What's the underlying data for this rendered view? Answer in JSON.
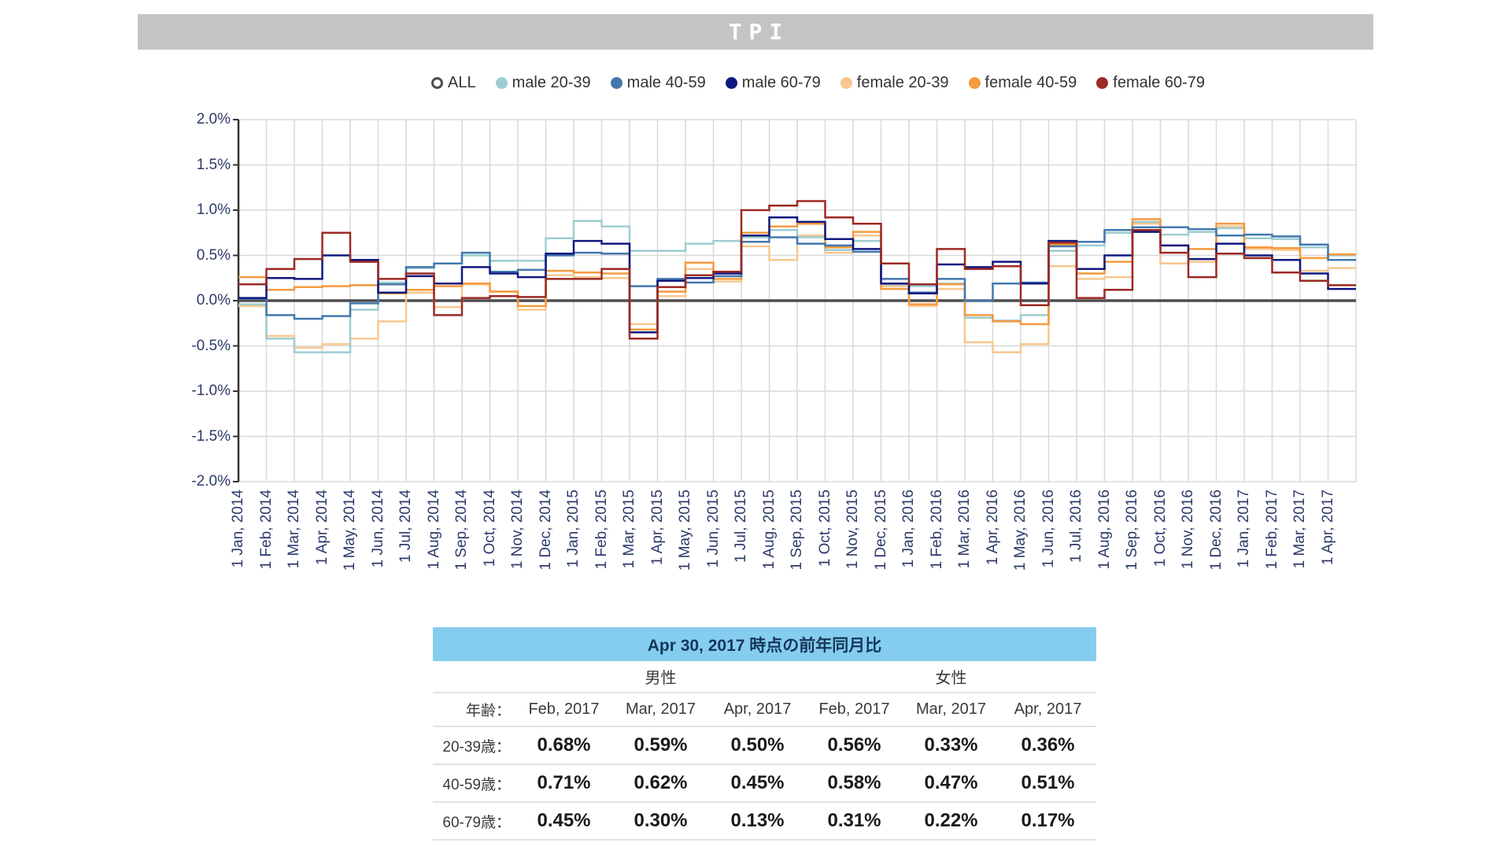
{
  "title": "TPI",
  "colors": {
    "all": "#4d4d4d",
    "male_20_39": "#9dcdd0",
    "male_40_59": "#4378ad",
    "male_60_79": "#10187f",
    "female_20_39": "#f8c790",
    "female_40_59": "#f49a3e",
    "female_60_79": "#9b2a23",
    "grid": "#d9d9d9",
    "axis": "#333333",
    "axis_label": "#2d3a6b",
    "title_bar_bg": "#c4c4c4",
    "table_header_bg": "#85cdee"
  },
  "chart_data": {
    "type": "line",
    "step": true,
    "title": "TPI",
    "xlabel": "",
    "ylabel": "",
    "ylim": [
      -2.0,
      2.0
    ],
    "y_tick_step": 0.5,
    "y_tick_labels": [
      "2.0%",
      "1.5%",
      "1.0%",
      "0.5%",
      "0.0%",
      "-0.5%",
      "-1.0%",
      "-1.5%",
      "-2.0%"
    ],
    "x_label_rotation": -90,
    "grid": true,
    "legend_position": "top",
    "unit": "%",
    "categories": [
      "1 Jan, 2014",
      "1 Feb, 2014",
      "1 Mar, 2014",
      "1 Apr, 2014",
      "1 May, 2014",
      "1 Jun, 2014",
      "1 Jul, 2014",
      "1 Aug, 2014",
      "1 Sep, 2014",
      "1 Oct, 2014",
      "1 Nov, 2014",
      "1 Dec, 2014",
      "1 Jan, 2015",
      "1 Feb, 2015",
      "1 Mar, 2015",
      "1 Apr, 2015",
      "1 May, 2015",
      "1 Jun, 2015",
      "1 Jul, 2015",
      "1 Aug, 2015",
      "1 Sep, 2015",
      "1 Oct, 2015",
      "1 Nov, 2015",
      "1 Dec, 2015",
      "1 Jan, 2016",
      "1 Feb, 2016",
      "1 Mar, 2016",
      "1 Apr, 2016",
      "1 May, 2016",
      "1 Jun, 2016",
      "1 Jul, 2016",
      "1 Aug, 2016",
      "1 Sep, 2016",
      "1 Oct, 2016",
      "1 Nov, 2016",
      "1 Dec, 2016",
      "1 Jan, 2017",
      "1 Feb, 2017",
      "1 Mar, 2017",
      "1 Apr, 2017"
    ],
    "series": [
      {
        "key": "all",
        "name": "ALL",
        "open_marker": true,
        "values": [
          0,
          0,
          0,
          0,
          0,
          0,
          0,
          0,
          0,
          0,
          0,
          0,
          0,
          0,
          0,
          0,
          0,
          0,
          0,
          0,
          0,
          0,
          0,
          0,
          0,
          0,
          0,
          0,
          0,
          0,
          0,
          0,
          0,
          0,
          0,
          0,
          0,
          0,
          0,
          0
        ]
      },
      {
        "key": "female_20_39",
        "name": "female 20-39",
        "values": [
          -0.06,
          -0.39,
          -0.52,
          -0.48,
          -0.42,
          -0.23,
          0.09,
          -0.07,
          0.18,
          0.1,
          -0.1,
          0.28,
          0.26,
          0.25,
          -0.26,
          0.05,
          0.35,
          0.21,
          0.6,
          0.45,
          0.72,
          0.53,
          0.72,
          0.16,
          -0.06,
          0.13,
          -0.46,
          -0.57,
          -0.48,
          0.38,
          0.24,
          0.26,
          0.85,
          0.41,
          0.43,
          0.82,
          0.57,
          0.56,
          0.33,
          0.36
        ]
      },
      {
        "key": "male_20_39",
        "name": "male 20-39",
        "values": [
          -0.04,
          -0.42,
          -0.57,
          -0.57,
          -0.1,
          0.2,
          0.36,
          0.41,
          0.5,
          0.44,
          0.44,
          0.69,
          0.88,
          0.82,
          0.55,
          0.55,
          0.63,
          0.66,
          0.7,
          0.78,
          0.7,
          0.56,
          0.66,
          0.18,
          0.16,
          0.19,
          -0.19,
          -0.22,
          -0.16,
          0.55,
          0.61,
          0.75,
          0.87,
          0.73,
          0.76,
          0.8,
          0.69,
          0.68,
          0.59,
          0.5
        ]
      },
      {
        "key": "female_40_59",
        "name": "female 40-59",
        "values": [
          0.26,
          0.12,
          0.15,
          0.16,
          0.17,
          0.08,
          0.12,
          0.16,
          0.19,
          0.1,
          -0.06,
          0.33,
          0.31,
          0.3,
          -0.32,
          0.1,
          0.42,
          0.24,
          0.75,
          0.82,
          0.85,
          0.59,
          0.76,
          0.13,
          -0.04,
          0.18,
          -0.16,
          -0.23,
          -0.26,
          0.62,
          0.3,
          0.43,
          0.9,
          0.61,
          0.57,
          0.85,
          0.59,
          0.58,
          0.47,
          0.51
        ]
      },
      {
        "key": "male_40_59",
        "name": "male 40-59",
        "values": [
          0.02,
          -0.16,
          -0.2,
          -0.17,
          -0.03,
          0.18,
          0.37,
          0.41,
          0.53,
          0.32,
          0.34,
          0.5,
          0.53,
          0.52,
          0.16,
          0.24,
          0.2,
          0.27,
          0.65,
          0.7,
          0.63,
          0.61,
          0.54,
          0.24,
          0.09,
          0.24,
          0.0,
          0.19,
          0.2,
          0.6,
          0.65,
          0.78,
          0.81,
          0.81,
          0.79,
          0.72,
          0.73,
          0.71,
          0.62,
          0.45
        ]
      },
      {
        "key": "male_60_79",
        "name": "male 60-79",
        "values": [
          0.03,
          0.25,
          0.24,
          0.5,
          0.45,
          0.09,
          0.27,
          0.19,
          0.37,
          0.3,
          0.26,
          0.52,
          0.66,
          0.63,
          -0.35,
          0.22,
          0.25,
          0.3,
          0.72,
          0.92,
          0.87,
          0.68,
          0.57,
          0.19,
          0.08,
          0.4,
          0.37,
          0.43,
          0.19,
          0.66,
          0.35,
          0.5,
          0.76,
          0.61,
          0.46,
          0.63,
          0.5,
          0.45,
          0.3,
          0.13
        ]
      },
      {
        "key": "female_60_79",
        "name": "female 60-79",
        "values": [
          0.18,
          0.35,
          0.46,
          0.75,
          0.43,
          0.24,
          0.3,
          -0.16,
          0.03,
          0.05,
          0.04,
          0.24,
          0.24,
          0.35,
          -0.42,
          0.15,
          0.28,
          0.32,
          1.0,
          1.05,
          1.1,
          0.92,
          0.85,
          0.41,
          0.18,
          0.57,
          0.35,
          0.38,
          -0.05,
          0.64,
          0.03,
          0.12,
          0.78,
          0.53,
          0.26,
          0.52,
          0.47,
          0.31,
          0.22,
          0.17
        ]
      }
    ]
  },
  "legend_order": [
    "all",
    "male_20_39",
    "male_40_59",
    "male_60_79",
    "female_20_39",
    "female_40_59",
    "female_60_79"
  ],
  "table": {
    "title": "Apr 30, 2017 時点の前年同月比",
    "groups": [
      {
        "label": "男性",
        "span": 3
      },
      {
        "label": "女性",
        "span": 3
      }
    ],
    "age_header": "年齢：",
    "month_headers": [
      "Feb, 2017",
      "Mar, 2017",
      "Apr, 2017",
      "Feb, 2017",
      "Mar, 2017",
      "Apr, 2017"
    ],
    "rows": [
      {
        "label": "20-39歳：",
        "values": [
          "0.68%",
          "0.59%",
          "0.50%",
          "0.56%",
          "0.33%",
          "0.36%"
        ]
      },
      {
        "label": "40-59歳：",
        "values": [
          "0.71%",
          "0.62%",
          "0.45%",
          "0.58%",
          "0.47%",
          "0.51%"
        ]
      },
      {
        "label": "60-79歳：",
        "values": [
          "0.45%",
          "0.30%",
          "0.13%",
          "0.31%",
          "0.22%",
          "0.17%"
        ]
      }
    ]
  }
}
